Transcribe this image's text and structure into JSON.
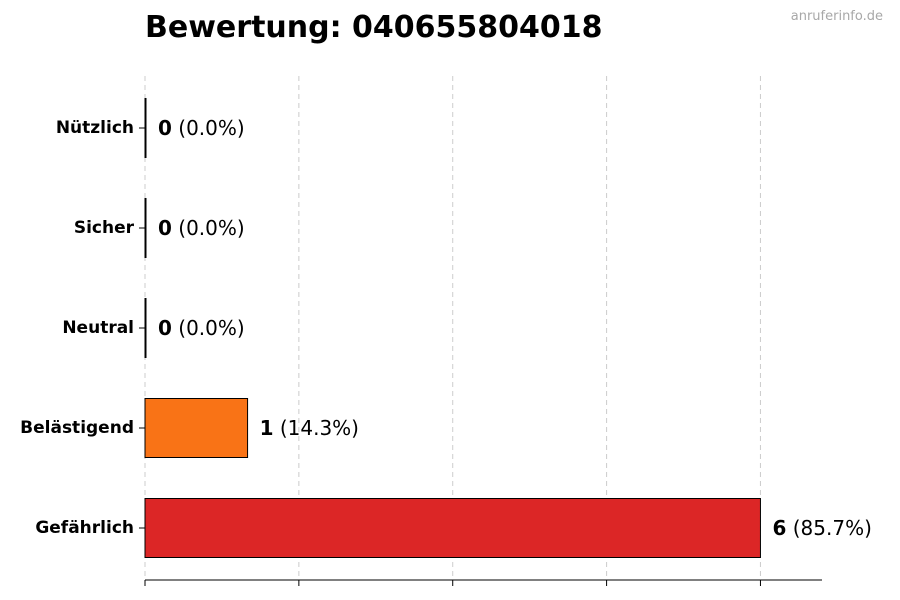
{
  "header": {
    "title": "Bewertung: 040655804018",
    "watermark": "anruferinfo.de"
  },
  "colors": {
    "Nützlich": "#2ca02c",
    "Sicher": "#1f77b4",
    "Neutral": "#7f7f7f",
    "Belästigend": "#f97316",
    "Gefährlich": "#dc2626",
    "grid": "#cccccc",
    "axis": "#000000"
  },
  "chart_data": {
    "type": "bar",
    "orientation": "horizontal",
    "title": "Bewertung: 040655804018",
    "categories": [
      "Nützlich",
      "Sicher",
      "Neutral",
      "Belästigend",
      "Gefährlich"
    ],
    "values": [
      0,
      0,
      0,
      1,
      6
    ],
    "percent_labels": [
      "(0.0%)",
      "(0.0%)",
      "(0.0%)",
      "(14.3%)",
      "(85.7%)"
    ],
    "xlim": [
      0,
      6.6
    ],
    "x_ticks": [
      0,
      1.5,
      3,
      4.5,
      6
    ],
    "x_tick_labels_shown": false,
    "grid": "vertical dashed",
    "legend": "none"
  }
}
